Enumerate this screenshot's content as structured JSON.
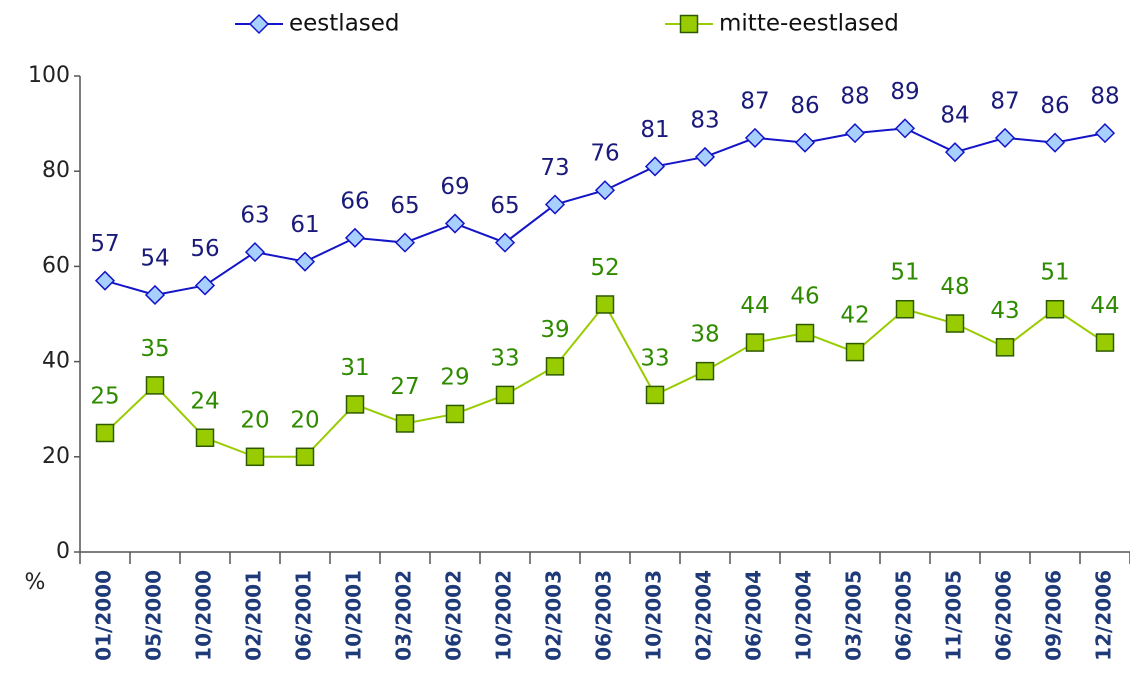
{
  "chart_data": {
    "type": "line",
    "categories": [
      "01/2000",
      "05/2000",
      "10/2000",
      "02/2001",
      "06/2001",
      "10/2001",
      "03/2002",
      "06/2002",
      "10/2002",
      "02/2003",
      "06/2003",
      "10/2003",
      "02/2004",
      "06/2004",
      "10/2004",
      "03/2005",
      "06/2005",
      "11/2005",
      "06/2006",
      "09/2006",
      "12/2006"
    ],
    "series": [
      {
        "name": "eestlased",
        "color": "#1414c8",
        "marker": "diamond",
        "marker_fill": "#a8d0ff",
        "label_color": "#1a1a7a",
        "values": [
          57,
          54,
          56,
          63,
          61,
          66,
          65,
          69,
          65,
          73,
          76,
          81,
          83,
          87,
          86,
          88,
          89,
          84,
          87,
          86,
          88
        ]
      },
      {
        "name": "mitte-eestlased",
        "color": "#99cc00",
        "marker": "square",
        "marker_fill": "#99cc00",
        "label_color": "#2e8b00",
        "values": [
          25,
          35,
          24,
          20,
          20,
          31,
          27,
          29,
          33,
          39,
          52,
          33,
          38,
          44,
          46,
          42,
          51,
          48,
          43,
          51,
          44
        ]
      }
    ],
    "ylabel": "%",
    "ylim": [
      0,
      100
    ],
    "yticks": [
      0,
      20,
      40,
      60,
      80,
      100
    ],
    "legend": "top",
    "grid": false
  }
}
